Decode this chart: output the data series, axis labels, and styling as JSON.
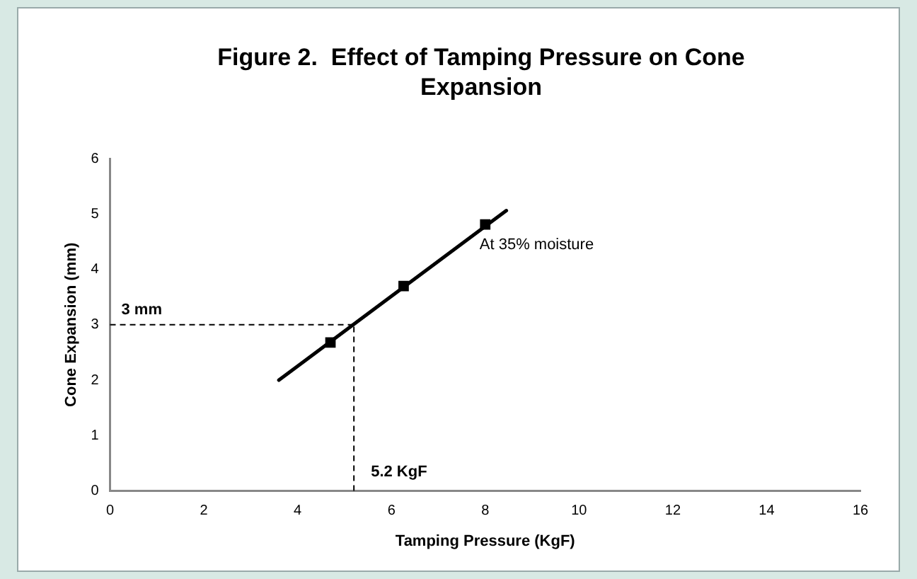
{
  "chart_data": {
    "type": "scatter",
    "title": "Figure 2.  Effect of Tamping Pressure on Cone Expansion",
    "xlabel": "Tamping Pressure (KgF)",
    "ylabel": "Cone Expansion (mm)",
    "series": [
      {
        "color": "#000000",
        "marker": "square",
        "x": [
          4.7,
          6.26,
          8.0
        ],
        "values": [
          2.68,
          3.7,
          4.81
        ]
      },
      {
        "type": "line",
        "marker": "none",
        "color": "#000000",
        "x": [
          3.6,
          8.45
        ],
        "values": [
          2.0,
          5.06
        ]
      }
    ],
    "xlim": [
      0,
      16
    ],
    "xticks": [
      0,
      2,
      4,
      6,
      8,
      10,
      12,
      14,
      16
    ],
    "ylim": [
      0,
      6
    ],
    "yticks": [
      0,
      1,
      2,
      3,
      4,
      5,
      6
    ],
    "ref_lines": [
      {
        "axis": "y",
        "value": 3,
        "label": "3 mm",
        "line_style": "dashed"
      },
      {
        "axis": "x",
        "value": 5.2,
        "label": "5.2 KgF",
        "line_style": "dashed"
      }
    ],
    "annotations": [
      {
        "text": "At 35% moisture",
        "x": 8.0,
        "y": 4.81
      }
    ],
    "grid": false,
    "legend": false
  }
}
